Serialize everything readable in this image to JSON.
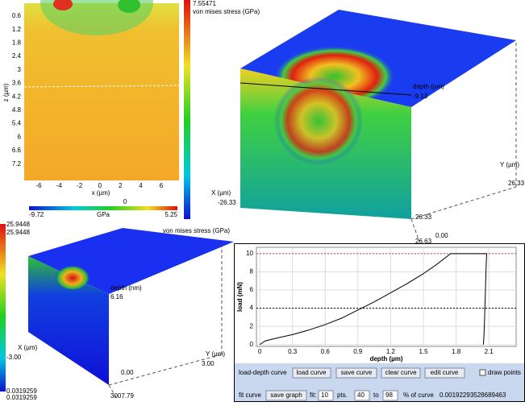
{
  "contour_panel": {
    "y_label": "z (µm)",
    "yticks": [
      "0.6",
      "1.2",
      "1.8",
      "2.4",
      "3",
      "3.6",
      "4.2",
      "4.8",
      "5.4",
      "6",
      "6.6",
      "7.2"
    ],
    "x_label": "x (µm)",
    "xticks": [
      "-6",
      "-4",
      "-2",
      "0",
      "2",
      "4",
      "6"
    ],
    "colorbar": {
      "min": "-9.72",
      "unit": "GPa",
      "mid": "0",
      "max": "5.25"
    }
  },
  "stress_colorbar_top": {
    "max": "7.55471",
    "label": "von mises stress (GPa)"
  },
  "cube_top": {
    "depth_label": "depth (µm)",
    "depth_value": "-9.13",
    "x_label": "X (µm)",
    "x_value": "-26.33",
    "y_label": "Y (µm)",
    "y_value": "26.33",
    "y_end": "26.33",
    "origin": "0.00",
    "x_end": "26.63"
  },
  "stress_colorbar_bottom": {
    "max_a": "25.9448",
    "max_b": "25.9448",
    "min_a": "0.0319259",
    "min_b": "0.0319259",
    "label": "von mises stress (GPa)"
  },
  "cube_bottom": {
    "depth_label": "depth (nm)",
    "depth_value": "6.16",
    "x_label": "X (µm)",
    "x_value": "-3.00",
    "y_label": "Y (µm)",
    "y_value": "3.00",
    "origin": "0.00",
    "depth_end": "3007.79"
  },
  "chart_data": {
    "type": "line",
    "x_label": "depth (µm)",
    "y_label": "load (mN)",
    "x": [
      0,
      0.05,
      0.15,
      0.3,
      0.45,
      0.6,
      0.75,
      0.9,
      1.05,
      1.2,
      1.35,
      1.5,
      1.62,
      1.75,
      1.9,
      2.08,
      2.075,
      2.07,
      2.065,
      2.06,
      2.055,
      2.05
    ],
    "series": [
      {
        "name": "load-depth curve",
        "color": "#000000",
        "values": [
          0,
          0.4,
          0.7,
          1.1,
          1.6,
          2.2,
          2.9,
          3.8,
          4.7,
          5.7,
          6.7,
          7.8,
          8.8,
          10,
          10,
          10,
          8.5,
          6.5,
          4.5,
          2.5,
          1,
          0
        ]
      }
    ],
    "xlim": [
      -0.03,
      2.35
    ],
    "ylim": [
      -0.2,
      10.7
    ],
    "xticks": [
      0,
      0.3,
      0.6,
      0.9,
      1.2,
      1.5,
      1.8,
      2.1
    ],
    "yticks": [
      0,
      2,
      4,
      6,
      8,
      10
    ],
    "grid": true,
    "reference_lines": [
      {
        "value": 10,
        "color": "#c0407a"
      },
      {
        "value": 4,
        "color": "#000000"
      }
    ]
  },
  "controls": {
    "row1_label": "load-depth curve",
    "load": "load curve",
    "save": "save curve",
    "clear": "clear curve",
    "edit": "edit curve",
    "draw_points": "draw points",
    "row2_label": "fit curve",
    "save_graph": "save graph",
    "fit": "fit:",
    "fit_pts": "10",
    "pts": "pts.",
    "from": "40",
    "to": "to",
    "upto": "98",
    "percent": "% of curve",
    "result": "0.00192293528689463"
  }
}
